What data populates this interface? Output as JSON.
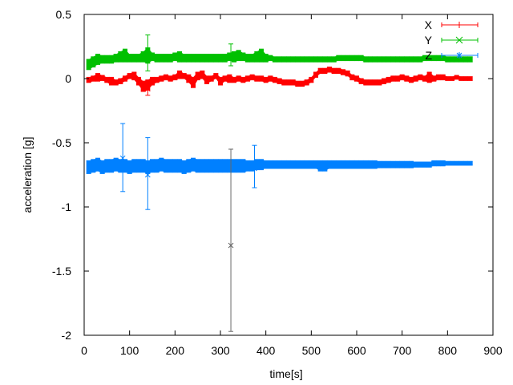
{
  "chart_data": {
    "type": "scatter",
    "style": "errorbars",
    "xlabel": "time[s]",
    "ylabel": "acceleration [g]",
    "xlim": [
      0,
      900
    ],
    "ylim": [
      -2,
      0.5
    ],
    "xticks": [
      "0",
      "100",
      "200",
      "300",
      "400",
      "500",
      "600",
      "700",
      "800",
      "900"
    ],
    "yticks": [
      "0.5",
      "0",
      "-0.5",
      "-1",
      "-1.5",
      "-2"
    ],
    "grid": false,
    "legend": "top-right",
    "x": [
      10,
      20,
      30,
      40,
      50,
      60,
      70,
      80,
      90,
      100,
      110,
      120,
      130,
      140,
      150,
      160,
      170,
      180,
      190,
      200,
      210,
      220,
      230,
      240,
      250,
      260,
      270,
      280,
      290,
      300,
      310,
      320,
      330,
      340,
      350,
      360,
      370,
      380,
      390,
      400,
      410,
      420,
      430,
      440,
      450,
      460,
      470,
      480,
      490,
      500,
      510,
      520,
      530,
      540,
      550,
      560,
      570,
      580,
      590,
      600,
      610,
      620,
      630,
      640,
      650,
      660,
      670,
      680,
      690,
      700,
      710,
      720,
      730,
      740,
      750,
      760,
      770,
      780,
      790,
      800,
      810,
      820,
      830,
      840,
      850
    ],
    "series": [
      {
        "name": "X",
        "color": "#ff0000",
        "marker": "plus",
        "y": [
          -0.01,
          0.0,
          0.01,
          0.005,
          -0.01,
          -0.02,
          -0.03,
          -0.02,
          0.0,
          0.02,
          0.02,
          -0.02,
          -0.06,
          -0.05,
          -0.02,
          -0.01,
          0.0,
          0.01,
          0.0,
          0.01,
          0.03,
          0.02,
          0.0,
          -0.03,
          0.02,
          0.03,
          -0.01,
          0.0,
          0.02,
          -0.02,
          0.0,
          0.0,
          -0.01,
          0.0,
          -0.01,
          0.0,
          0.01,
          0.0,
          0.0,
          -0.01,
          0.0,
          -0.01,
          -0.02,
          -0.03,
          -0.03,
          -0.03,
          -0.04,
          -0.04,
          -0.03,
          -0.01,
          0.03,
          0.06,
          0.06,
          0.07,
          0.06,
          0.06,
          0.05,
          0.04,
          0.01,
          0.0,
          -0.02,
          -0.03,
          -0.03,
          -0.03,
          -0.03,
          -0.02,
          -0.01,
          0.0,
          0.0,
          0.01,
          0.0,
          -0.01,
          0.0,
          0.01,
          0.0,
          0.01,
          0.0,
          0.01,
          0.01,
          0.0,
          0.0,
          0.01,
          0.0,
          0.0,
          0.0
        ],
        "err": [
          0.02,
          0.02,
          0.03,
          0.02,
          0.02,
          0.03,
          0.02,
          0.02,
          0.02,
          0.02,
          0.03,
          0.03,
          0.04,
          0.04,
          0.03,
          0.02,
          0.02,
          0.02,
          0.02,
          0.02,
          0.03,
          0.02,
          0.03,
          0.04,
          0.03,
          0.03,
          0.03,
          0.02,
          0.02,
          0.03,
          0.02,
          0.03,
          0.02,
          0.02,
          0.02,
          0.02,
          0.02,
          0.02,
          0.02,
          0.02,
          0.02,
          0.02,
          0.02,
          0.02,
          0.02,
          0.02,
          0.02,
          0.02,
          0.02,
          0.02,
          0.02,
          0.02,
          0.02,
          0.02,
          0.02,
          0.02,
          0.02,
          0.02,
          0.02,
          0.02,
          0.02,
          0.02,
          0.02,
          0.02,
          0.02,
          0.02,
          0.02,
          0.02,
          0.02,
          0.02,
          0.02,
          0.02,
          0.02,
          0.02,
          0.02,
          0.04,
          0.02,
          0.02,
          0.02,
          0.015,
          0.015,
          0.015,
          0.015,
          0.015,
          0.015
        ]
      },
      {
        "name": "Y",
        "color": "#00c000",
        "marker": "cross",
        "y": [
          0.11,
          0.13,
          0.15,
          0.15,
          0.15,
          0.15,
          0.16,
          0.17,
          0.18,
          0.16,
          0.16,
          0.16,
          0.17,
          0.18,
          0.17,
          0.16,
          0.16,
          0.16,
          0.16,
          0.17,
          0.17,
          0.16,
          0.16,
          0.16,
          0.16,
          0.16,
          0.16,
          0.16,
          0.16,
          0.16,
          0.16,
          0.17,
          0.17,
          0.18,
          0.17,
          0.16,
          0.16,
          0.17,
          0.18,
          0.16,
          0.16,
          0.15,
          0.15,
          0.15,
          0.15,
          0.15,
          0.15,
          0.15,
          0.15,
          0.15,
          0.15,
          0.15,
          0.15,
          0.15,
          0.15,
          0.16,
          0.16,
          0.16,
          0.16,
          0.16,
          0.16,
          0.15,
          0.15,
          0.15,
          0.15,
          0.15,
          0.15,
          0.15,
          0.15,
          0.15,
          0.15,
          0.15,
          0.15,
          0.15,
          0.16,
          0.16,
          0.16,
          0.16,
          0.16,
          0.15,
          0.15,
          0.15,
          0.15,
          0.15,
          0.15
        ],
        "err": [
          0.04,
          0.04,
          0.04,
          0.03,
          0.03,
          0.03,
          0.03,
          0.04,
          0.05,
          0.03,
          0.03,
          0.03,
          0.04,
          0.06,
          0.03,
          0.03,
          0.03,
          0.03,
          0.03,
          0.03,
          0.04,
          0.03,
          0.03,
          0.03,
          0.03,
          0.03,
          0.03,
          0.03,
          0.03,
          0.03,
          0.03,
          0.03,
          0.04,
          0.04,
          0.03,
          0.03,
          0.03,
          0.04,
          0.05,
          0.03,
          0.02,
          0.02,
          0.02,
          0.02,
          0.02,
          0.02,
          0.02,
          0.02,
          0.02,
          0.02,
          0.02,
          0.02,
          0.02,
          0.02,
          0.02,
          0.02,
          0.02,
          0.02,
          0.02,
          0.02,
          0.02,
          0.02,
          0.02,
          0.02,
          0.02,
          0.02,
          0.02,
          0.02,
          0.02,
          0.02,
          0.02,
          0.02,
          0.02,
          0.02,
          0.02,
          0.02,
          0.02,
          0.02,
          0.02,
          0.02,
          0.02,
          0.02,
          0.02,
          0.02,
          0.02
        ]
      },
      {
        "name": "Z",
        "color": "#0080ff",
        "marker": "star",
        "y": [
          -0.69,
          -0.68,
          -0.67,
          -0.69,
          -0.68,
          -0.68,
          -0.67,
          -0.68,
          -0.68,
          -0.69,
          -0.68,
          -0.68,
          -0.68,
          -0.69,
          -0.68,
          -0.68,
          -0.67,
          -0.68,
          -0.68,
          -0.68,
          -0.68,
          -0.69,
          -0.68,
          -0.67,
          -0.68,
          -0.68,
          -0.68,
          -0.68,
          -0.68,
          -0.68,
          -0.68,
          -0.68,
          -0.68,
          -0.68,
          -0.68,
          -0.68,
          -0.68,
          -0.67,
          -0.67,
          -0.67,
          -0.67,
          -0.67,
          -0.67,
          -0.67,
          -0.67,
          -0.67,
          -0.67,
          -0.67,
          -0.67,
          -0.67,
          -0.67,
          -0.68,
          -0.68,
          -0.67,
          -0.67,
          -0.67,
          -0.67,
          -0.67,
          -0.67,
          -0.67,
          -0.67,
          -0.67,
          -0.67,
          -0.67,
          -0.67,
          -0.67,
          -0.67,
          -0.67,
          -0.67,
          -0.67,
          -0.67,
          -0.67,
          -0.67,
          -0.67,
          -0.67,
          -0.67,
          -0.66,
          -0.66,
          -0.66,
          -0.66,
          -0.66,
          -0.66,
          -0.66,
          -0.66,
          -0.66
        ],
        "err": [
          0.05,
          0.05,
          0.05,
          0.05,
          0.05,
          0.05,
          0.05,
          0.05,
          0.05,
          0.05,
          0.05,
          0.05,
          0.05,
          0.05,
          0.05,
          0.05,
          0.05,
          0.05,
          0.05,
          0.05,
          0.05,
          0.05,
          0.05,
          0.05,
          0.05,
          0.05,
          0.05,
          0.05,
          0.05,
          0.05,
          0.05,
          0.05,
          0.05,
          0.05,
          0.05,
          0.04,
          0.04,
          0.04,
          0.04,
          0.03,
          0.03,
          0.03,
          0.03,
          0.03,
          0.03,
          0.03,
          0.03,
          0.03,
          0.03,
          0.03,
          0.03,
          0.04,
          0.04,
          0.03,
          0.03,
          0.03,
          0.03,
          0.03,
          0.03,
          0.03,
          0.03,
          0.03,
          0.03,
          0.03,
          0.025,
          0.025,
          0.025,
          0.025,
          0.025,
          0.025,
          0.025,
          0.025,
          0.02,
          0.02,
          0.02,
          0.02,
          0.02,
          0.02,
          0.02,
          0.015,
          0.015,
          0.015,
          0.015,
          0.015,
          0.015
        ]
      }
    ],
    "outliers": [
      {
        "series": "Z",
        "x": 323,
        "y": -1.3,
        "err_low": -1.97,
        "err_high": -0.55
      },
      {
        "series": "Z",
        "x": 85,
        "y": -0.62,
        "err_low": -0.88,
        "err_high": -0.35
      },
      {
        "series": "Z",
        "x": 140,
        "y": -0.75,
        "err_low": -1.02,
        "err_high": -0.46
      },
      {
        "series": "Z",
        "x": 375,
        "y": -0.7,
        "err_low": -0.85,
        "err_high": -0.52
      },
      {
        "series": "Y",
        "x": 140,
        "y": 0.2,
        "err_low": 0.06,
        "err_high": 0.34
      },
      {
        "series": "Y",
        "x": 323,
        "y": 0.18,
        "err_low": 0.1,
        "err_high": 0.27
      },
      {
        "series": "X",
        "x": 140,
        "y": -0.08,
        "err_low": -0.13,
        "err_high": -0.03
      }
    ]
  }
}
